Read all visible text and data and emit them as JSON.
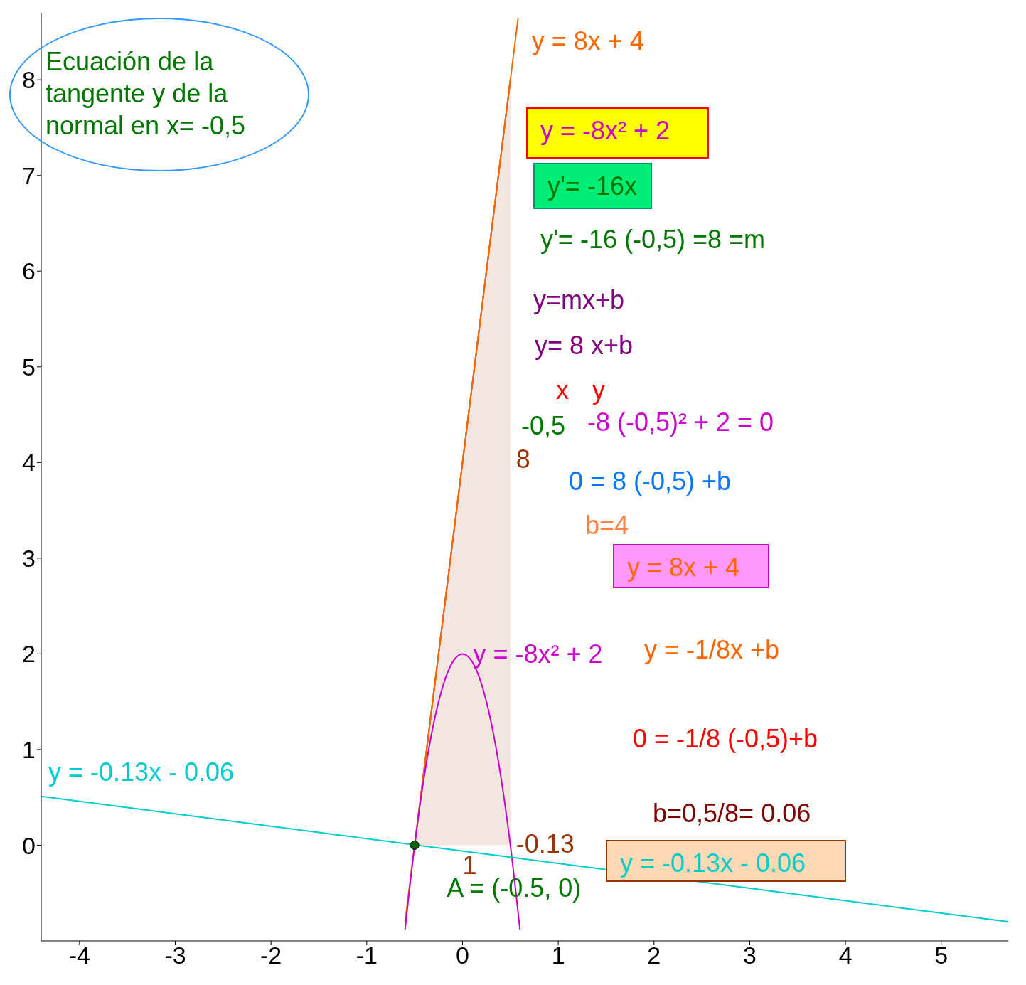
{
  "chart_data": {
    "type": "line",
    "title": "Ecuación de la tangente y de la normal en  x= -0,5",
    "xlim": [
      -4.4,
      5.7
    ],
    "ylim": [
      -1,
      8.7
    ],
    "xticks": [
      -4,
      -3,
      -2,
      -1,
      0,
      1,
      2,
      3,
      4,
      5
    ],
    "yticks": [
      0,
      1,
      2,
      3,
      4,
      5,
      6,
      7,
      8
    ],
    "series": [
      {
        "type": "area",
        "color": "#993300",
        "x": [
          -0.5,
          0.5
        ],
        "values": [
          0,
          8
        ]
      },
      {
        "name": "y = 8x + 4",
        "color": "#ff6600",
        "x": [
          -0.6,
          0.5,
          0.58
        ],
        "values": [
          -0.8,
          8,
          8.64
        ]
      },
      {
        "name": "y = -8x² + 2",
        "color": "#cc00cc",
        "x": [
          -0.6,
          -0.5,
          -0.4,
          -0.3,
          -0.2,
          -0.1,
          0,
          0.1,
          0.2,
          0.3,
          0.4,
          0.5,
          0.6
        ],
        "values": [
          -0.88,
          0,
          0.72,
          1.28,
          1.68,
          1.92,
          2,
          1.92,
          1.68,
          1.28,
          0.72,
          0,
          -0.88
        ]
      },
      {
        "name": "y = -0.13x - 0.06",
        "color": "#00cccc",
        "x": [
          -4.4,
          5.7
        ],
        "values": [
          0.51,
          -0.8
        ]
      },
      {
        "type": "scatter",
        "color": "#006600",
        "x": [
          -0.5
        ],
        "values": [
          0
        ]
      }
    ],
    "annotations": [
      "y = -8x² + 2",
      "y'= -16x",
      "y'= -16 (-0,5) =8 =m",
      "y=mx+b",
      "y= 8 x+b",
      "x",
      "y",
      "-0,5",
      "-8 (-0,5)² + 2 = 0",
      "0 = 8 (-0,5) +b",
      "b=4",
      "y = 8x + 4",
      "y = -1/8x +b",
      "0 = -1/8 (-0,5)+b",
      "b=0,5/8= 0.06",
      "y = -0.13x - 0.06",
      {
        "text": "8",
        "x": 0.5,
        "y": 4
      },
      {
        "text": "1",
        "x": 0,
        "y": 0
      },
      {
        "text": "-0.13",
        "x": 0.5,
        "y": 0
      },
      {
        "text": "A = (-0.5, 0)",
        "x": -0.5,
        "y": 0
      }
    ]
  }
}
